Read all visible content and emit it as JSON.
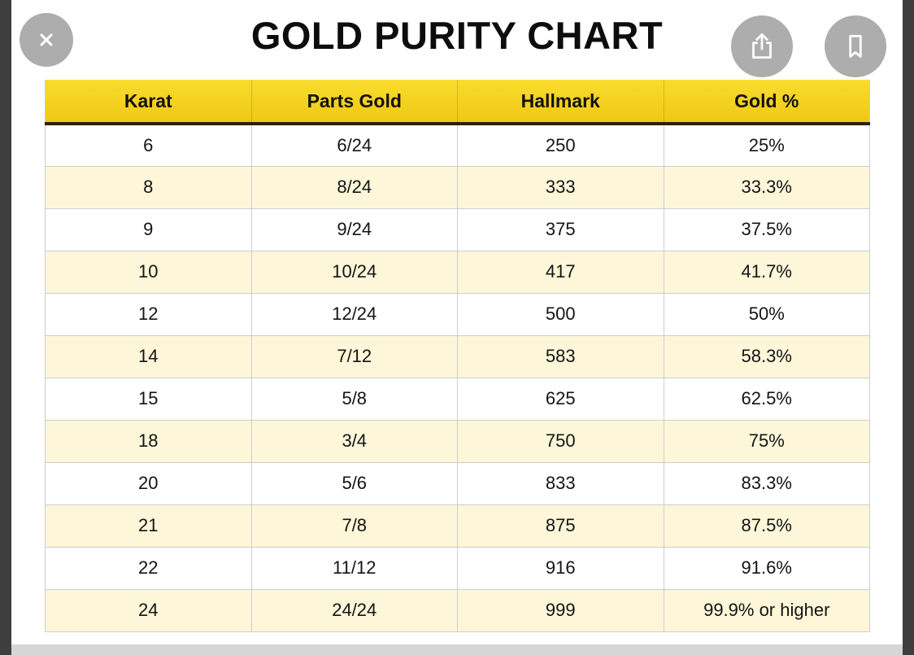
{
  "title": "GOLD PURITY CHART",
  "toolbar": {
    "close_icon": "close-icon",
    "share_icon": "share-icon",
    "bookmark_icon": "bookmark-icon"
  },
  "chart_data": {
    "type": "table",
    "title": "GOLD PURITY CHART",
    "columns": [
      "Karat",
      "Parts Gold",
      "Hallmark",
      "Gold %"
    ],
    "rows": [
      [
        "6",
        "6/24",
        "250",
        "25%"
      ],
      [
        "8",
        "8/24",
        "333",
        "33.3%"
      ],
      [
        "9",
        "9/24",
        "375",
        "37.5%"
      ],
      [
        "10",
        "10/24",
        "417",
        "41.7%"
      ],
      [
        "12",
        "12/24",
        "500",
        "50%"
      ],
      [
        "14",
        "7/12",
        "583",
        "58.3%"
      ],
      [
        "15",
        "5/8",
        "625",
        "62.5%"
      ],
      [
        "18",
        "3/4",
        "750",
        "75%"
      ],
      [
        "20",
        "5/6",
        "833",
        "83.3%"
      ],
      [
        "21",
        "7/8",
        "875",
        "87.5%"
      ],
      [
        "22",
        "11/12",
        "916",
        "91.6%"
      ],
      [
        "24",
        "24/24",
        "999",
        "99.9% or higher"
      ]
    ],
    "colors": {
      "header_bg_top": "#f9dc2e",
      "header_bg_bottom": "#f0c815",
      "header_border": "#29220a",
      "row_bg": "#ffffff",
      "row_alt_bg": "#fdf6d9",
      "grid_line": "#cdcdcd"
    },
    "layout": {
      "grid": "on",
      "alternating_rows": true
    }
  }
}
